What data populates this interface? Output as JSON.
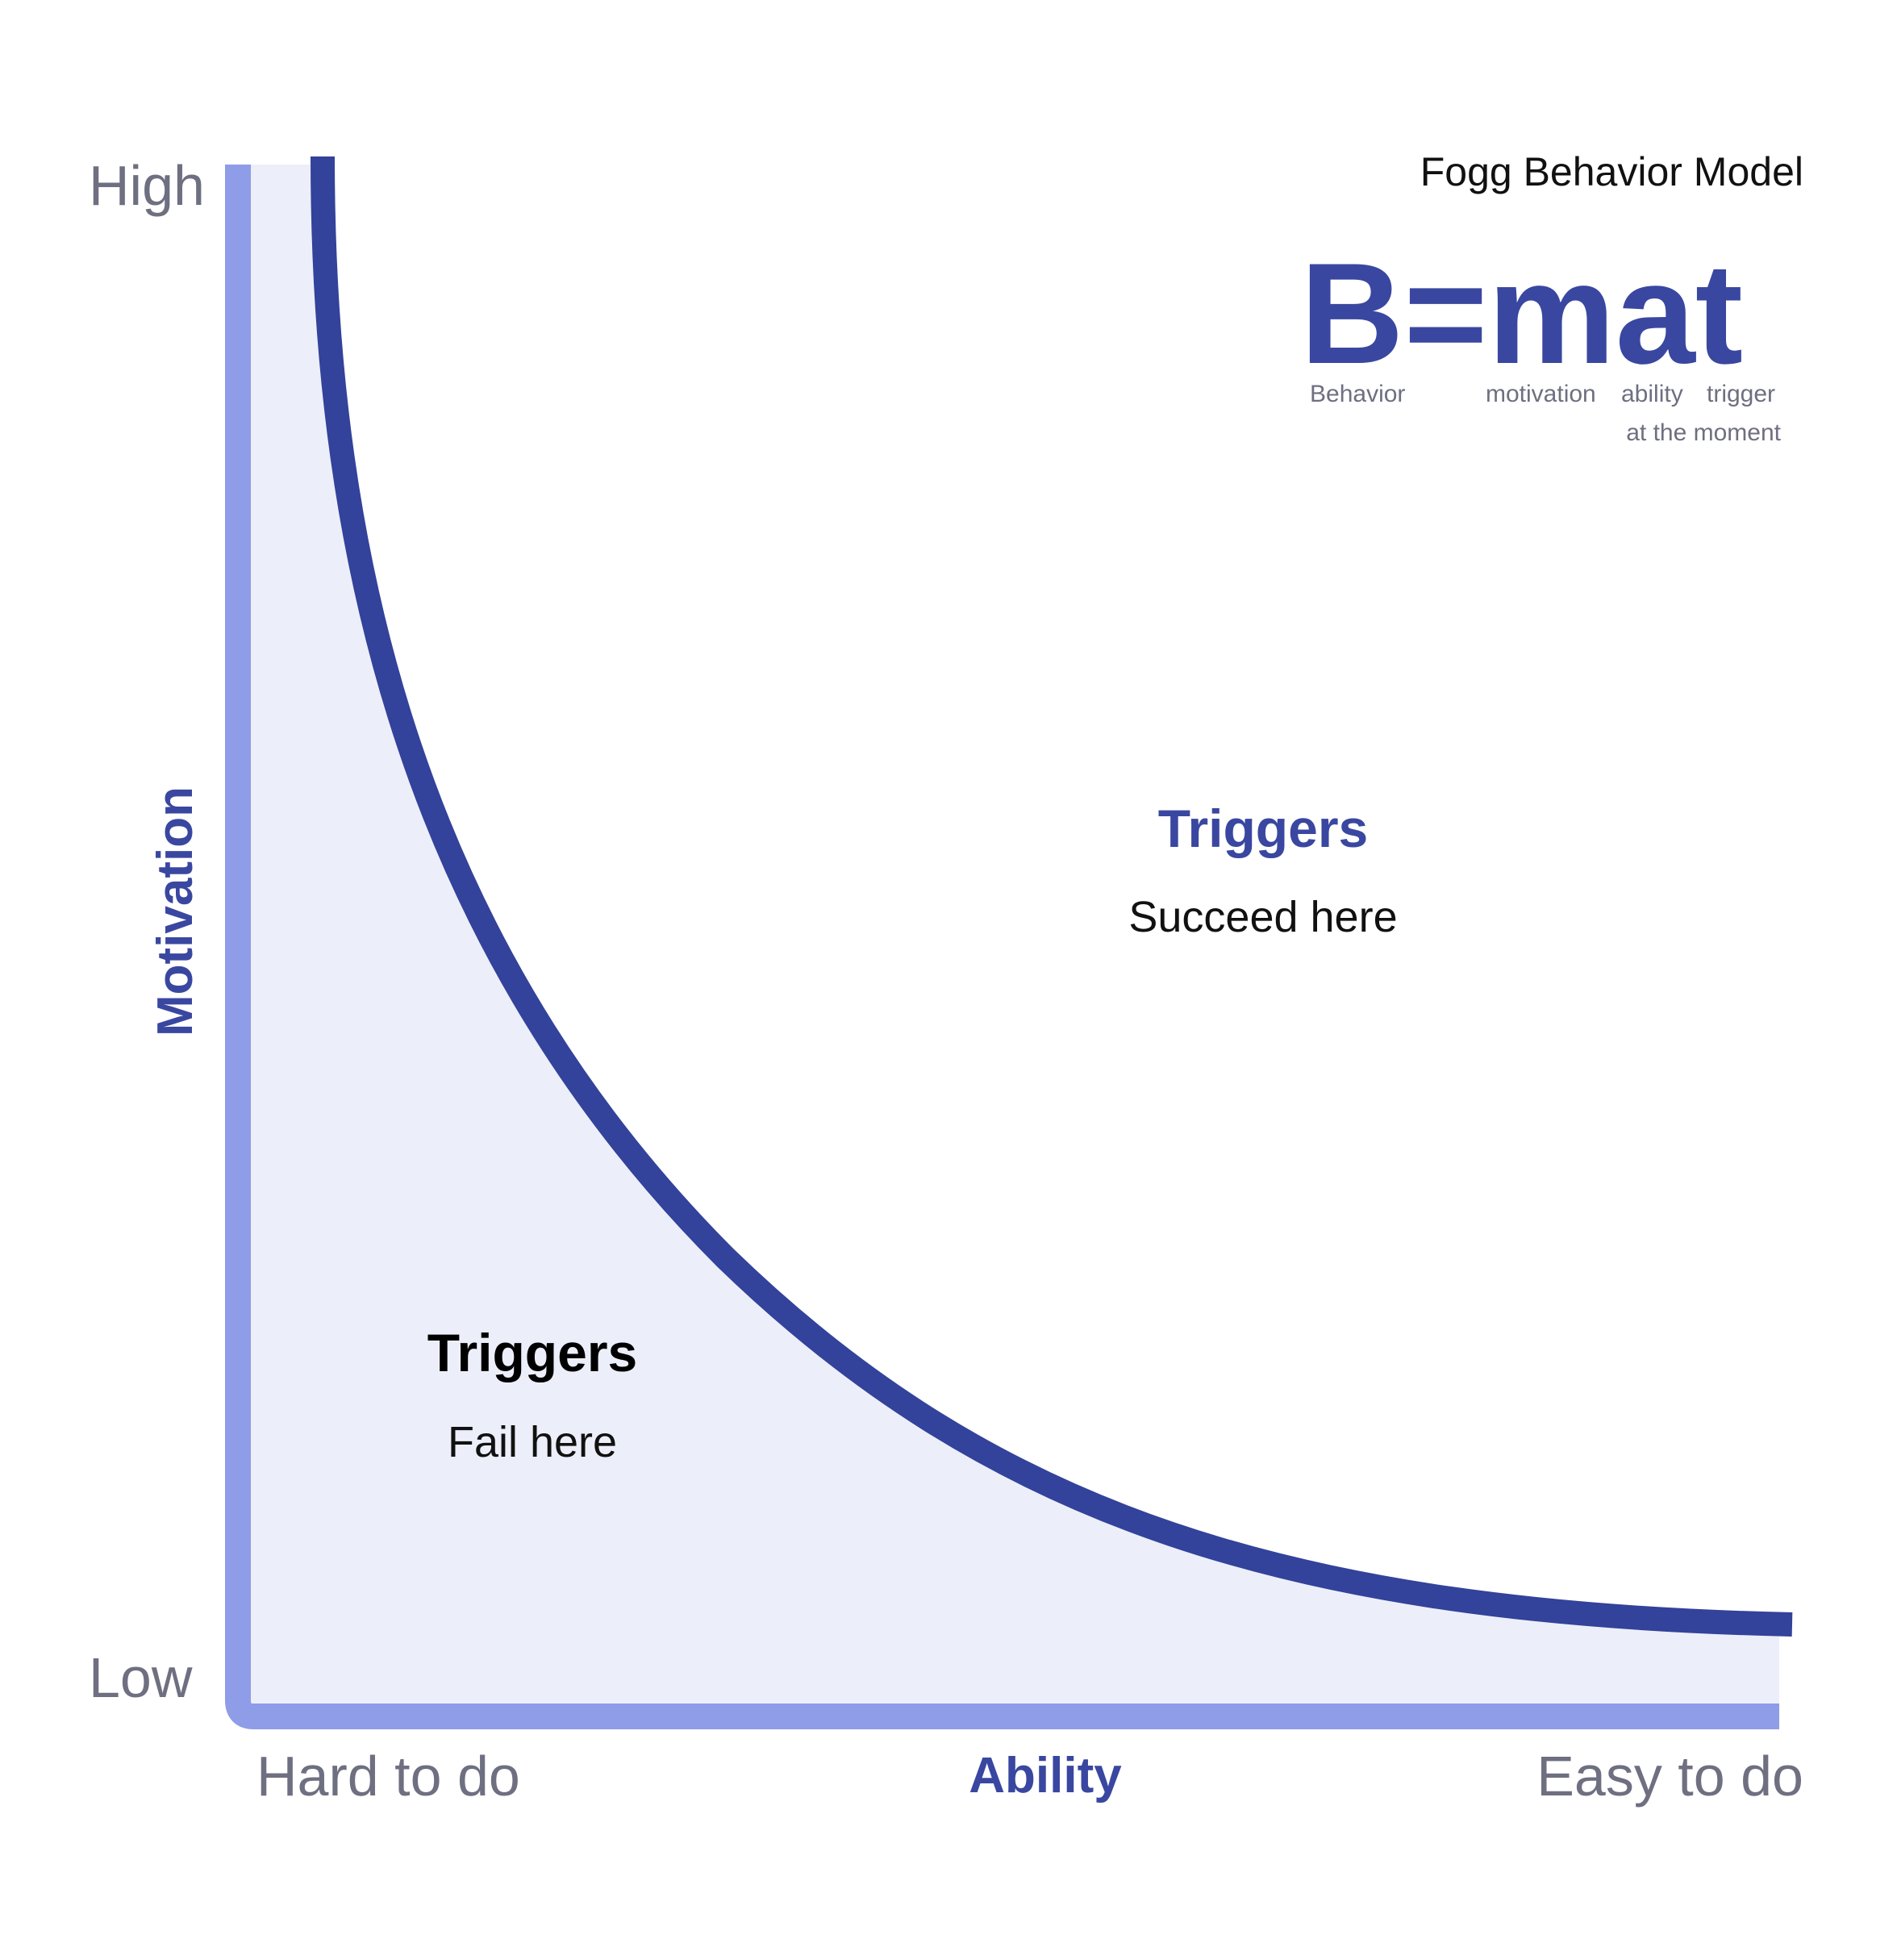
{
  "colors": {
    "axis": "#8f9ce8",
    "region_fill": "#eceff9",
    "curve": "#33429a",
    "accent": "#3a47a0",
    "muted_text": "#6e6f80",
    "dark_text": "#111111"
  },
  "model": {
    "title": "Fogg Behavior Model",
    "formula": "B=mat",
    "legend": {
      "behavior": "Behavior",
      "motivation": "motivation",
      "ability": "ability",
      "trigger": "trigger",
      "trigger_note": "at the moment"
    }
  },
  "axes": {
    "y": {
      "title": "Motivation",
      "high_label": "High",
      "low_label": "Low"
    },
    "x": {
      "title": "Ability",
      "low_label": "Hard to do",
      "high_label": "Easy to do"
    }
  },
  "zones": {
    "fail": {
      "title": "Triggers",
      "subtitle": "Fail here"
    },
    "succeed": {
      "title": "Triggers",
      "subtitle": "Succeed here"
    }
  },
  "curve": {
    "shape": "action-line",
    "description_free": true
  }
}
